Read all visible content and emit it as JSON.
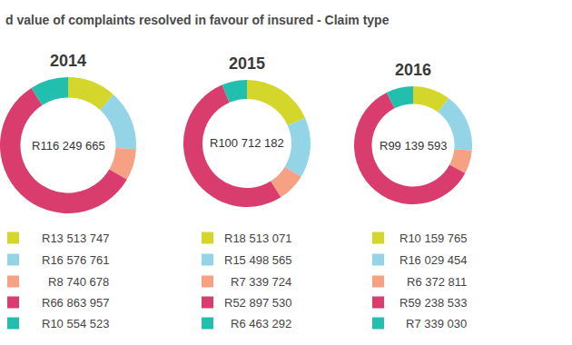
{
  "title": "d value of complaints resolved in favour of insured - Claim type",
  "chart_data": [
    {
      "type": "pie",
      "title": "2014",
      "center_label": "R116 249 665",
      "values": [
        13513747,
        16576761,
        8740678,
        66863957,
        10554523
      ],
      "value_labels": [
        "R13 513 747",
        "R16 576 761",
        "R8 740 678",
        "R66 863 957",
        "R10 554 523"
      ],
      "colors": [
        "#d5d62c",
        "#93d5e6",
        "#f6a084",
        "#d93d6d",
        "#22bfae"
      ]
    },
    {
      "type": "pie",
      "title": "2015",
      "center_label": "R100 712 182",
      "values": [
        18513071,
        15498565,
        7339724,
        52897530,
        6463292
      ],
      "value_labels": [
        "R18 513 071",
        "R15 498 565",
        "R7 339 724",
        "R52 897 530",
        "R6 463 292"
      ],
      "colors": [
        "#d5d62c",
        "#93d5e6",
        "#f6a084",
        "#d93d6d",
        "#22bfae"
      ]
    },
    {
      "type": "pie",
      "title": "2016",
      "center_label": "R99 139 593",
      "values": [
        10159765,
        16029454,
        6372811,
        59238533,
        7339030
      ],
      "value_labels": [
        "R10 159 765",
        "R16 029 454",
        "R6 372 811",
        "R59 238 533",
        "R7 339 030"
      ],
      "colors": [
        "#d5d62c",
        "#93d5e6",
        "#f6a084",
        "#d93d6d",
        "#22bfae"
      ]
    }
  ]
}
